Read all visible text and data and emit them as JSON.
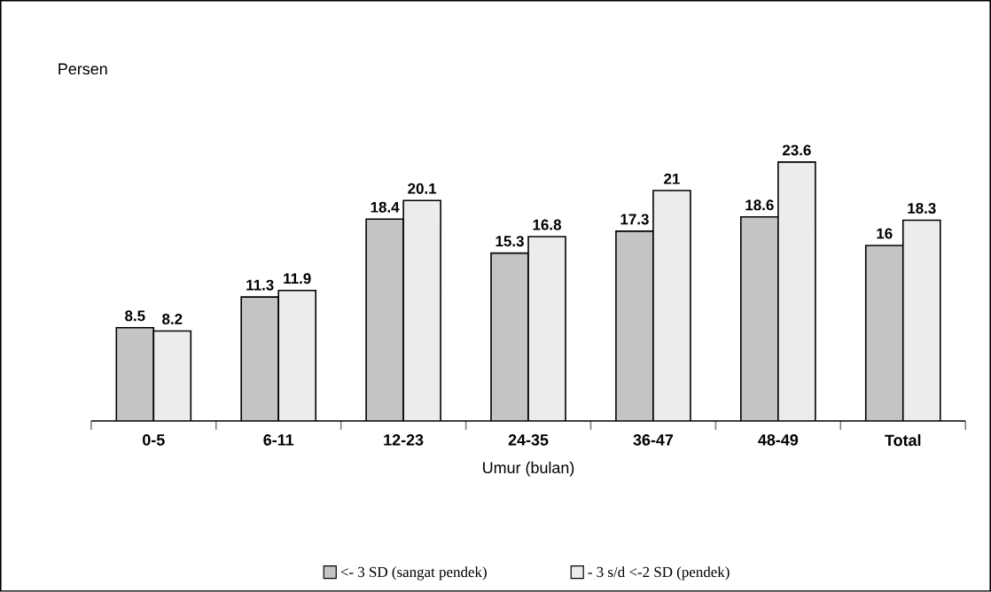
{
  "chart_data": {
    "type": "bar",
    "annotations": [
      "Persen"
    ],
    "xlabel": "Umur (bulan)",
    "categories": [
      "0-5",
      "6-11",
      "12-23",
      "24-35",
      "36-47",
      "48-49",
      "Total"
    ],
    "series": [
      {
        "name": "<- 3 SD (sangat pendek)",
        "color": "#c4c4c4",
        "values": [
          8.5,
          11.3,
          18.4,
          15.3,
          17.3,
          18.6,
          16
        ]
      },
      {
        "name": "- 3 s/d <-2 SD (pendek)",
        "color": "#ececec",
        "values": [
          8.2,
          11.9,
          20.1,
          16.8,
          21,
          23.6,
          18.3
        ]
      }
    ],
    "data_labels": true,
    "legend": "bottom"
  }
}
